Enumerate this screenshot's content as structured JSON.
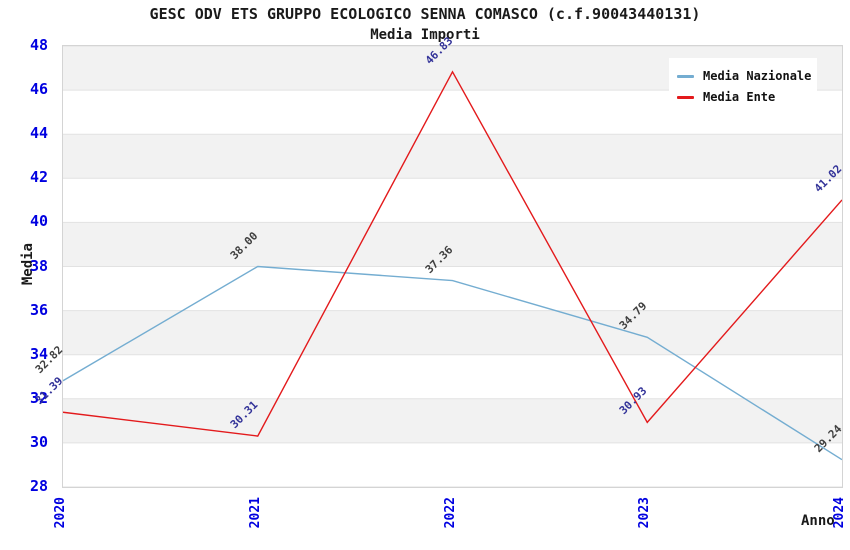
{
  "chart_data": {
    "type": "line",
    "title": "GESC ODV ETS GRUPPO ECOLOGICO SENNA COMASCO (c.f.90043440131)",
    "subtitle": "Media Importi",
    "xlabel": "Anno",
    "ylabel": "Media",
    "categories": [
      "2020",
      "2021",
      "2022",
      "2023",
      "2024"
    ],
    "ylim": [
      28,
      48
    ],
    "ytick_step": 2,
    "yticks": [
      28,
      30,
      32,
      34,
      36,
      38,
      40,
      42,
      44,
      46,
      48
    ],
    "grid": "horizontal-bands",
    "legend_position": "top-right",
    "band_colors": [
      "#f2f2f2",
      "#ffffff"
    ],
    "gridline_color": "#e2e2e2",
    "axis_tick_color": "#0000e0",
    "series": [
      {
        "name": "Media Nazionale",
        "color": "#74add1",
        "label_color": "#404040",
        "values": [
          32.82,
          38.0,
          37.36,
          34.79,
          29.24
        ],
        "labels": [
          "32.82",
          "38.00",
          "37.36",
          "34.79",
          "29.24"
        ]
      },
      {
        "name": "Media Ente",
        "color": "#e31a1c",
        "label_color": "#333399",
        "values": [
          31.39,
          30.31,
          46.83,
          30.93,
          41.02
        ],
        "labels": [
          "31.39",
          "30.31",
          "46.83",
          "30.93",
          "41.02"
        ]
      }
    ]
  }
}
